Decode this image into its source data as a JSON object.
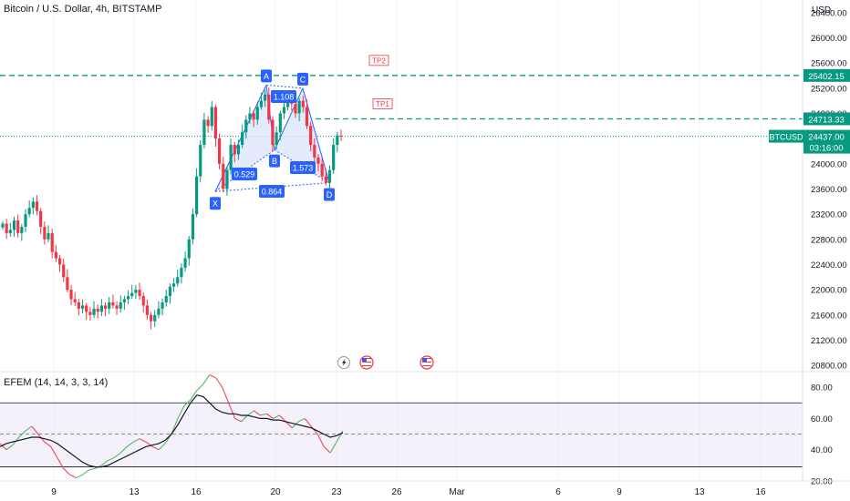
{
  "header": {
    "title": "Bitcoin / U.S. Dollar, 4h, BITSTAMP",
    "currency": "USD"
  },
  "indicator": {
    "title": "EFEM (14, 14, 3, 3, 14)",
    "band_color": "#ede7f6",
    "fast_color": "#4caf50",
    "slow_color": "#131722"
  },
  "colors": {
    "up": "#089981",
    "down": "#f23645",
    "tp_line": "#089981",
    "pattern": "#2962ff",
    "pattern_fill": "#dbe4fb"
  },
  "events": {
    "icons": [
      "lightning-icon",
      "us-flag-icon",
      "us-flag-icon"
    ]
  },
  "chart_data": [
    {
      "type": "candlestick",
      "title": "Bitcoin / U.S. Dollar, 4h, BITSTAMP",
      "symbol": "BTCUSD",
      "last_price": "24437.00",
      "countdown": "03:16:00",
      "ylim": [
        20700,
        26600
      ],
      "y_ticks": [
        "26400.00",
        "26000.00",
        "25600.00",
        "25200.00",
        "24800.00",
        "24400.00",
        "24000.00",
        "23600.00",
        "23200.00",
        "22800.00",
        "22400.00",
        "22000.00",
        "21600.00",
        "21200.00",
        "20800.00"
      ],
      "x_ticks": [
        "9",
        "13",
        "16",
        "20",
        "23",
        "26",
        "Mar",
        "6",
        "9",
        "13",
        "16"
      ],
      "levels": [
        {
          "name": "TP2",
          "value": 25402.15,
          "label": "25402.15",
          "color": "#089981"
        },
        {
          "name": "TP1",
          "value": 24713.33,
          "label": "24713.33",
          "color": "#089981"
        }
      ],
      "harmonic_pattern": {
        "points": [
          {
            "name": "X",
            "value": 23560
          },
          {
            "name": "A",
            "value": 25250
          },
          {
            "name": "B",
            "value": 24220
          },
          {
            "name": "C",
            "value": 25200
          },
          {
            "name": "D",
            "value": 23700
          }
        ],
        "ratios": [
          "0.529",
          "1.108",
          "1.573",
          "0.864"
        ]
      },
      "closes": [
        23050,
        22900,
        22950,
        23100,
        22900,
        23000,
        23200,
        23300,
        23400,
        23250,
        23000,
        22800,
        22900,
        22600,
        22500,
        22400,
        22200,
        22000,
        21850,
        21800,
        21700,
        21750,
        21650,
        21600,
        21700,
        21650,
        21750,
        21700,
        21800,
        21750,
        21700,
        21800,
        21850,
        21900,
        21950,
        22000,
        21900,
        21750,
        21600,
        21500,
        21600,
        21700,
        21800,
        21900,
        22050,
        22100,
        22200,
        22350,
        22500,
        22800,
        23200,
        23800,
        24300,
        24700,
        24600,
        24900,
        24400,
        24000,
        23600,
        23900,
        24300,
        24150,
        24300,
        24500,
        24700,
        24800,
        24700,
        24900,
        25000,
        25100,
        24700,
        24300,
        24500,
        24800,
        24900,
        25000,
        24950,
        24800,
        25000,
        24900,
        24600,
        24300,
        24100,
        24000,
        23800,
        23700,
        23900,
        24300,
        24450,
        24437
      ]
    },
    {
      "type": "line",
      "title": "EFEM (14, 14, 3, 3, 14)",
      "ylim": [
        20,
        90
      ],
      "y_ticks": [
        "80.00",
        "60.00",
        "40.00",
        "20.00"
      ],
      "band": [
        29,
        70
      ],
      "midline": 50,
      "series": [
        {
          "values": [
            44,
            40,
            43,
            48,
            52,
            55,
            50,
            45,
            42,
            35,
            28,
            24,
            22,
            24,
            27,
            28,
            30,
            33,
            35,
            38,
            42,
            45,
            47,
            45,
            42,
            40,
            44,
            50,
            60,
            68,
            72,
            78,
            82,
            88,
            86,
            80,
            70,
            60,
            58,
            62,
            65,
            62,
            63,
            60,
            62,
            58,
            54,
            58,
            60,
            55,
            50,
            42,
            38,
            45,
            52
          ]
        },
        {
          "values": [
            42,
            44,
            45,
            46,
            47,
            48,
            48,
            47,
            46,
            44,
            41,
            38,
            35,
            32,
            30,
            29,
            29,
            30,
            32,
            34,
            36,
            38,
            40,
            42,
            43,
            44,
            46,
            50,
            56,
            63,
            70,
            75,
            74,
            70,
            66,
            64,
            63,
            63,
            62,
            62,
            61,
            60,
            60,
            59,
            59,
            58,
            57,
            56,
            55,
            54,
            52,
            50,
            48,
            49,
            51
          ]
        }
      ]
    }
  ]
}
